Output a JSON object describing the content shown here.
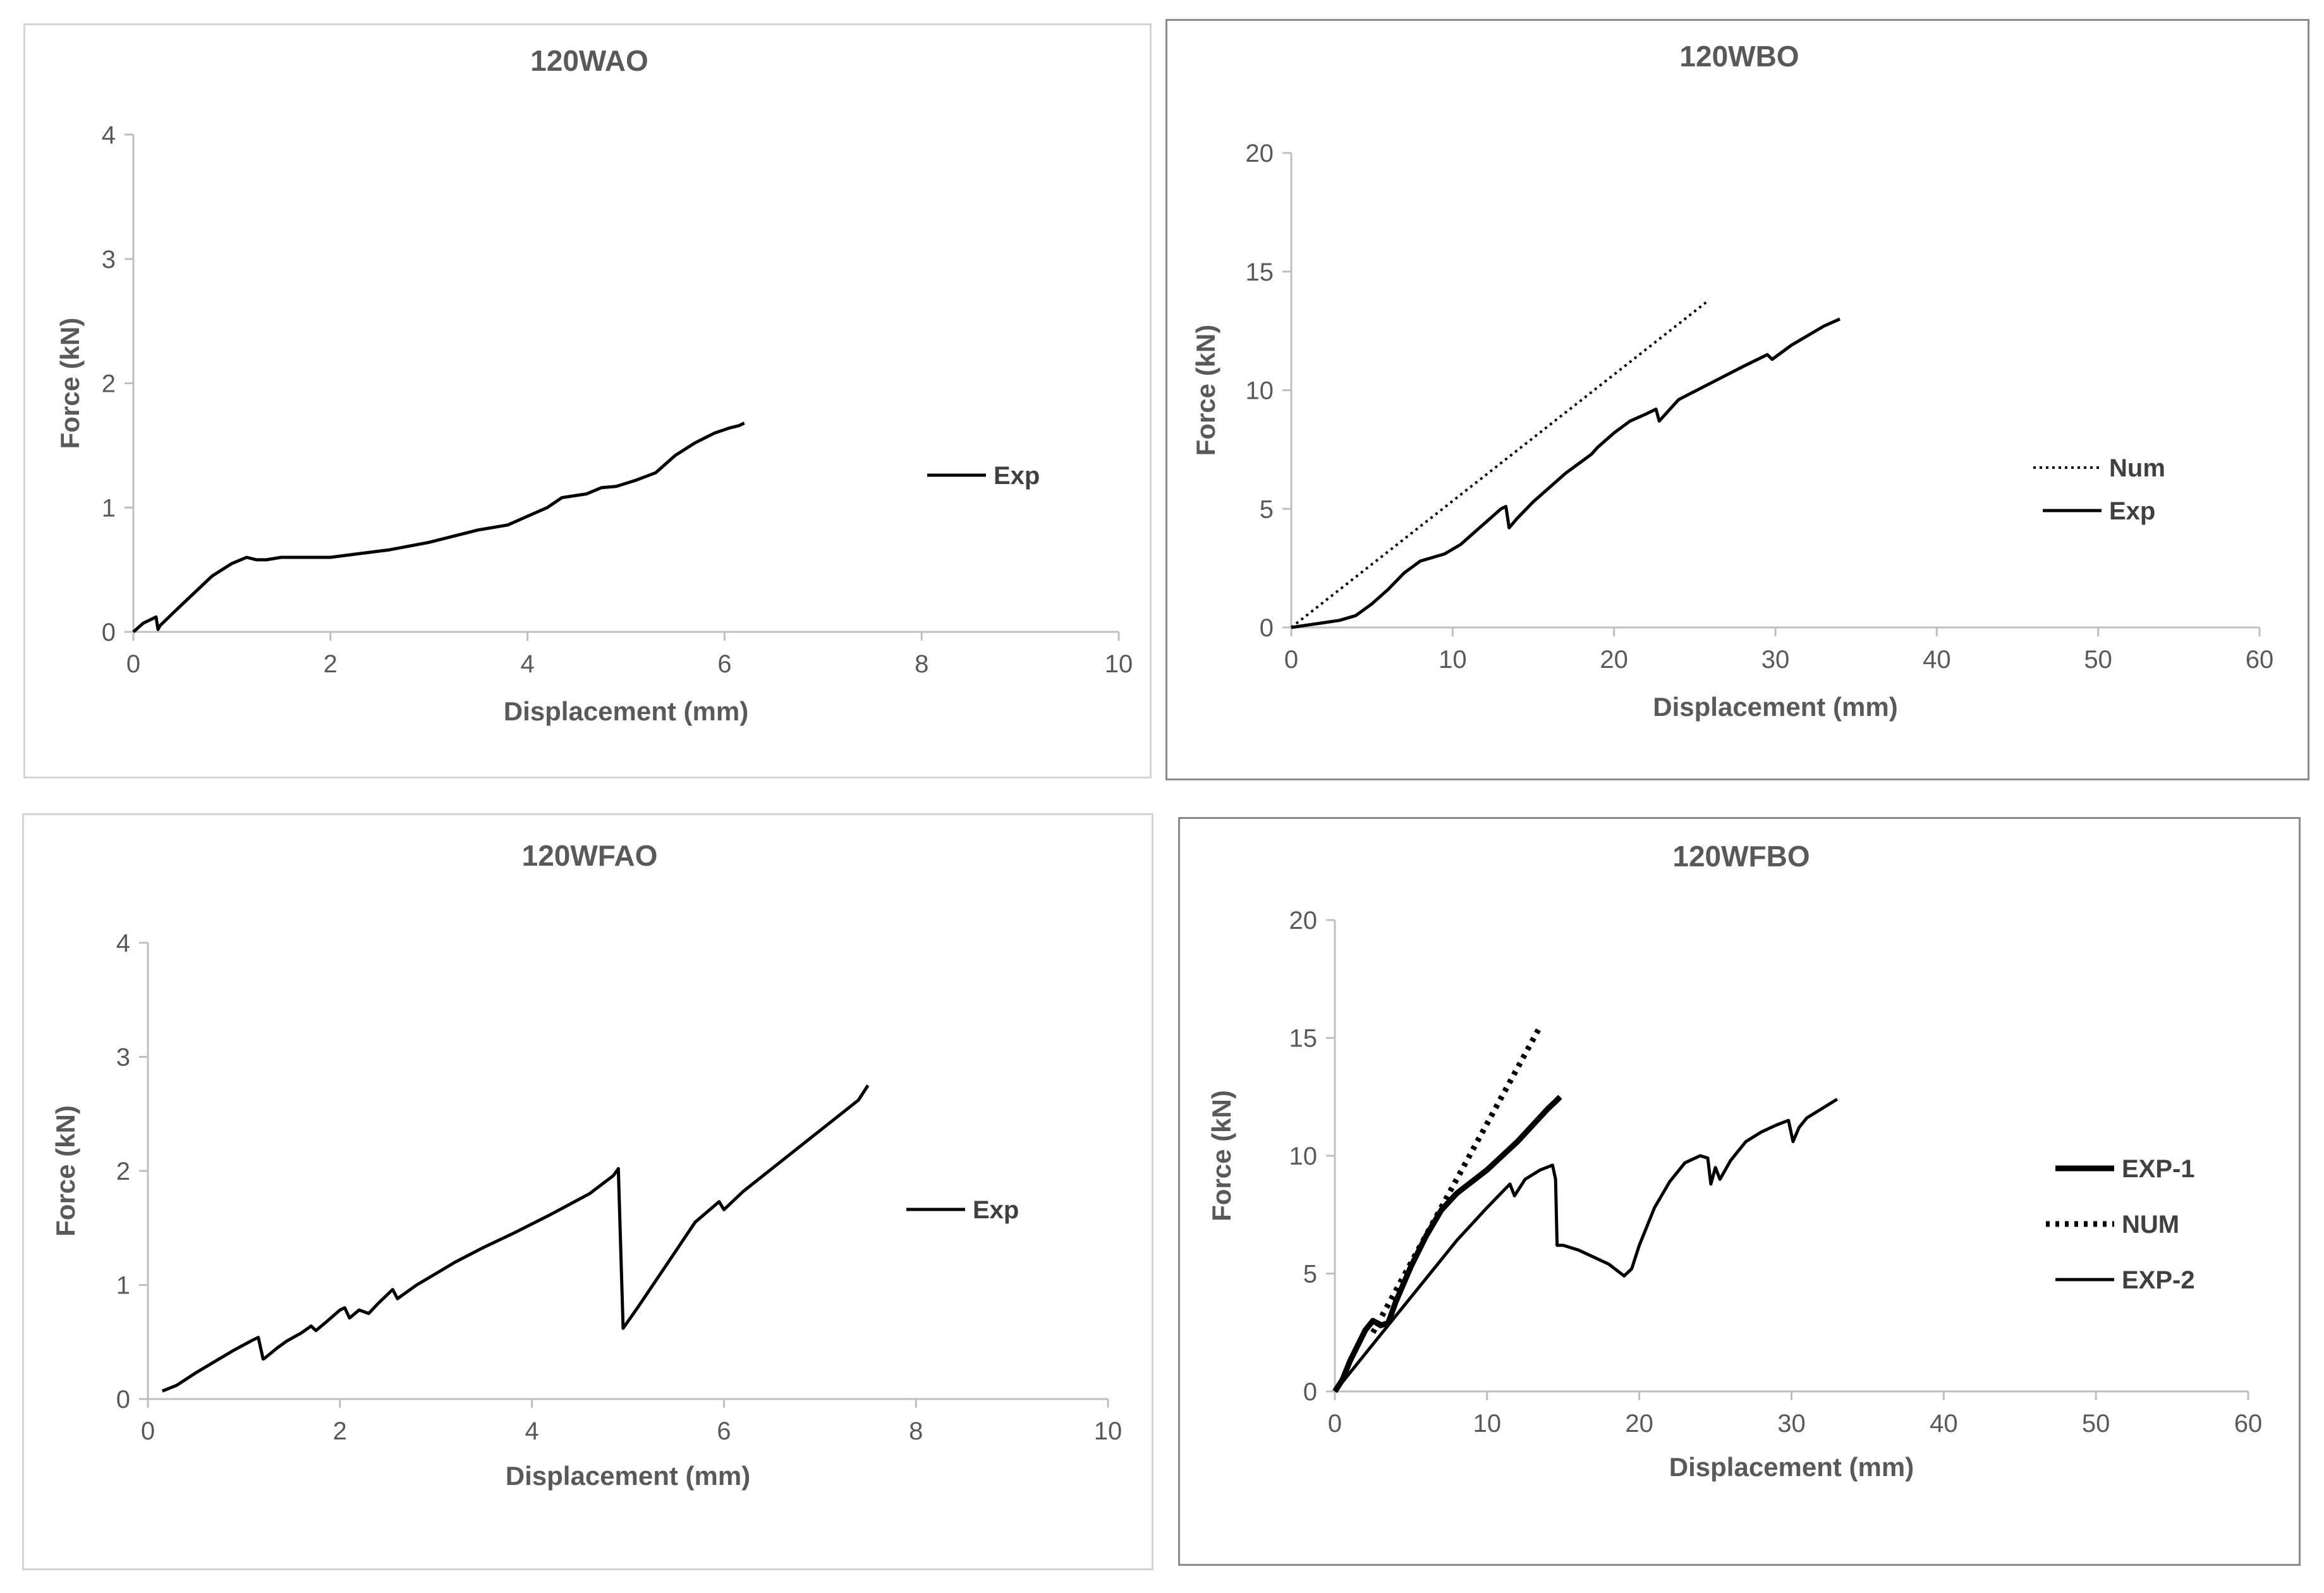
{
  "chart_data": [
    {
      "type": "line",
      "title": "120WAO",
      "xlabel": "Displacement (mm)",
      "ylabel": "Force (kN)",
      "xlim": [
        0,
        10
      ],
      "ylim": [
        0,
        4
      ],
      "xticks": [
        "0",
        "2",
        "4",
        "6",
        "8",
        "10"
      ],
      "yticks": [
        "0",
        "1",
        "2",
        "3",
        "4"
      ],
      "legend_position": "right",
      "series": [
        {
          "name": "Exp",
          "style": "solid",
          "width": "medium",
          "x": [
            0,
            0.1,
            0.23,
            0.25,
            0.27,
            0.4,
            0.6,
            0.8,
            1.0,
            1.15,
            1.25,
            1.35,
            1.5,
            1.7,
            2.0,
            2.3,
            2.6,
            3.0,
            3.5,
            3.8,
            4.0,
            4.2,
            4.35,
            4.6,
            4.75,
            4.9,
            5.1,
            5.3,
            5.5,
            5.7,
            5.9,
            6.05,
            6.15,
            6.2
          ],
          "y": [
            0,
            0.07,
            0.12,
            0.02,
            0.05,
            0.15,
            0.3,
            0.45,
            0.55,
            0.6,
            0.58,
            0.58,
            0.6,
            0.6,
            0.6,
            0.63,
            0.66,
            0.72,
            0.82,
            0.86,
            0.93,
            1.0,
            1.08,
            1.11,
            1.16,
            1.17,
            1.22,
            1.28,
            1.42,
            1.52,
            1.6,
            1.64,
            1.66,
            1.68
          ]
        }
      ]
    },
    {
      "type": "line",
      "title": "120WBO",
      "xlabel": "Displacement (mm)",
      "ylabel": "Force (kN)",
      "xlim": [
        0,
        60
      ],
      "ylim": [
        0,
        20
      ],
      "xticks": [
        "0",
        "10",
        "20",
        "30",
        "40",
        "50",
        "60"
      ],
      "yticks": [
        "0",
        "5",
        "10",
        "15",
        "20"
      ],
      "legend_position": "right",
      "series": [
        {
          "name": "Num",
          "style": "dotted",
          "width": "thin",
          "x": [
            0,
            25.7
          ],
          "y": [
            0,
            13.7
          ]
        },
        {
          "name": "Exp",
          "style": "solid",
          "width": "medium",
          "x": [
            0,
            1,
            2,
            3,
            4,
            5,
            6,
            7,
            8,
            9,
            9.5,
            10,
            10.5,
            11,
            11.5,
            12,
            12.5,
            13,
            13.3,
            13.5,
            14,
            15,
            16,
            17,
            18,
            18.6,
            19,
            20,
            21,
            22,
            22.6,
            22.8,
            24,
            26,
            28,
            29.5,
            29.8,
            31,
            32,
            33,
            34
          ],
          "y": [
            0,
            0.1,
            0.2,
            0.3,
            0.5,
            1.0,
            1.6,
            2.3,
            2.8,
            3.0,
            3.1,
            3.3,
            3.5,
            3.8,
            4.1,
            4.4,
            4.7,
            5.0,
            5.1,
            4.2,
            4.6,
            5.3,
            5.9,
            6.5,
            7.0,
            7.3,
            7.6,
            8.2,
            8.7,
            9.0,
            9.2,
            8.7,
            9.6,
            10.3,
            11.0,
            11.5,
            11.3,
            11.9,
            12.3,
            12.7,
            13.0
          ]
        }
      ]
    },
    {
      "type": "line",
      "title": "120WFAO",
      "xlabel": "Displacement (mm)",
      "ylabel": "Force (kN)",
      "xlim": [
        0,
        10
      ],
      "ylim": [
        0,
        4
      ],
      "xticks": [
        "0",
        "2",
        "4",
        "6",
        "8",
        "10"
      ],
      "yticks": [
        "0",
        "1",
        "2",
        "3",
        "4"
      ],
      "legend_position": "right",
      "series": [
        {
          "name": "Exp",
          "style": "solid",
          "width": "medium",
          "x": [
            0.15,
            0.3,
            0.5,
            0.7,
            0.9,
            1.1,
            1.15,
            1.2,
            1.22,
            1.35,
            1.45,
            1.6,
            1.7,
            1.75,
            1.85,
            2.0,
            2.05,
            2.1,
            2.2,
            2.3,
            2.4,
            2.55,
            2.6,
            2.8,
            3.0,
            3.2,
            3.5,
            3.8,
            4.2,
            4.6,
            4.85,
            4.9,
            4.95,
            5.1,
            5.3,
            5.5,
            5.7,
            5.95,
            6.0,
            6.05,
            6.2,
            6.5,
            6.8,
            7.1,
            7.4,
            7.5
          ],
          "y": [
            0.07,
            0.12,
            0.23,
            0.33,
            0.43,
            0.52,
            0.54,
            0.35,
            0.36,
            0.45,
            0.51,
            0.58,
            0.64,
            0.6,
            0.67,
            0.78,
            0.8,
            0.71,
            0.78,
            0.75,
            0.84,
            0.96,
            0.88,
            1.0,
            1.1,
            1.2,
            1.33,
            1.45,
            1.62,
            1.8,
            1.96,
            2.02,
            0.62,
            0.8,
            1.05,
            1.3,
            1.55,
            1.73,
            1.66,
            1.7,
            1.82,
            2.02,
            2.22,
            2.42,
            2.62,
            2.75
          ]
        }
      ]
    },
    {
      "type": "line",
      "title": "120WFBO",
      "xlabel": "Displacement (mm)",
      "ylabel": "Force (kN)",
      "xlim": [
        0,
        60
      ],
      "ylim": [
        0,
        20
      ],
      "xticks": [
        "0",
        "10",
        "20",
        "30",
        "40",
        "50",
        "60"
      ],
      "yticks": [
        "0",
        "5",
        "10",
        "15",
        "20"
      ],
      "legend_position": "right",
      "series": [
        {
          "name": "EXP-1",
          "style": "solid",
          "width": "thick",
          "x": [
            0,
            0.5,
            1,
            2,
            2.5,
            3,
            3.5,
            4,
            5,
            6,
            7,
            8,
            9,
            10,
            11,
            12,
            13,
            14,
            14.5,
            14.8
          ],
          "y": [
            0,
            0.5,
            1.3,
            2.6,
            3.0,
            2.8,
            2.9,
            3.8,
            5.3,
            6.6,
            7.7,
            8.4,
            8.9,
            9.4,
            10.0,
            10.6,
            11.3,
            12.0,
            12.3,
            12.5
          ]
        },
        {
          "name": "NUM",
          "style": "dotted",
          "width": "thick",
          "x": [
            2.5,
            13.5
          ],
          "y": [
            2.5,
            15.5
          ]
        },
        {
          "name": "EXP-2",
          "style": "solid",
          "width": "medium",
          "x": [
            0,
            1,
            2,
            4,
            6,
            8,
            10,
            11.5,
            11.8,
            12.5,
            13.5,
            14.3,
            14.5,
            14.6,
            15,
            16,
            17,
            18,
            19,
            19.5,
            20,
            21,
            22,
            23,
            24,
            24.5,
            24.7,
            25,
            25.3,
            26,
            27,
            28,
            29,
            29.8,
            30.1,
            30.5,
            31,
            32,
            33
          ],
          "y": [
            0,
            0.8,
            1.6,
            3.2,
            4.8,
            6.4,
            7.8,
            8.8,
            8.3,
            9.0,
            9.4,
            9.6,
            9.0,
            6.2,
            6.2,
            6.0,
            5.7,
            5.4,
            4.9,
            5.2,
            6.2,
            7.8,
            8.9,
            9.7,
            10.0,
            9.9,
            8.8,
            9.5,
            9.0,
            9.8,
            10.6,
            11.0,
            11.3,
            11.5,
            10.6,
            11.2,
            11.6,
            12.0,
            12.4
          ]
        }
      ]
    }
  ]
}
